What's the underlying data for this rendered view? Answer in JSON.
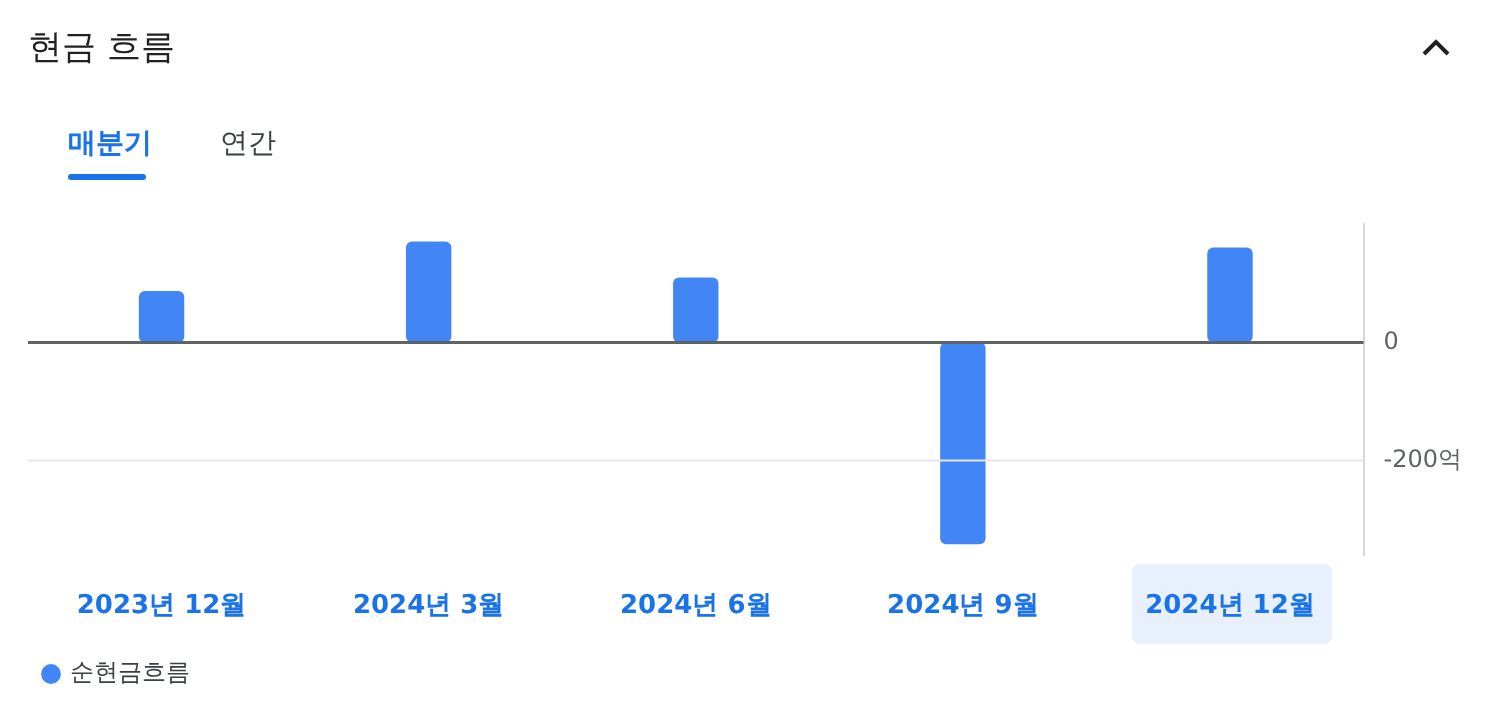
{
  "chart_data": {
    "type": "bar",
    "title": "현금 흐름",
    "annotations": [
      "매분기",
      "연간"
    ],
    "categories": [
      "2023년 12월",
      "2024년 3월",
      "2024년 6월",
      "2024년 9월",
      "2024년 12월"
    ],
    "series": [
      {
        "name": "순현금흐름",
        "color": "#4285f4",
        "values": [
          87,
          171,
          110,
          -342,
          161
        ]
      }
    ],
    "ylim": [
      -360,
      200
    ],
    "yticks": [
      0,
      {
        "value": -200,
        "label": "-200억"
      }
    ],
    "ref_lines": [
      {
        "axis": "y",
        "value": 0,
        "color": "#5f6368"
      },
      {
        "axis": "y",
        "value": -200,
        "color": "#e6e6e6"
      }
    ],
    "legend": "bottom left"
  }
}
